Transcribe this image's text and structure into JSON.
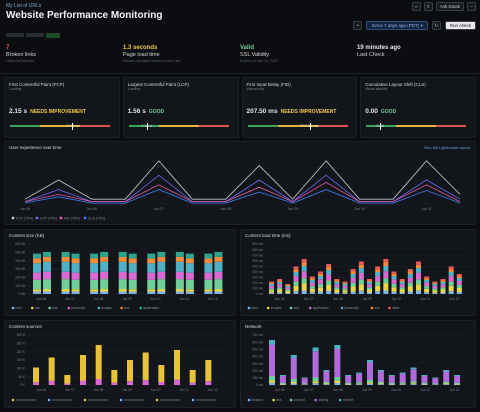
{
  "header": {
    "breadcrumb": "My List of URLs",
    "title": "Website Performance Monitoring",
    "ask_label": "Ask Dinak",
    "time_range": "Since 7 days ago (PDT)",
    "run_check": "Run check"
  },
  "summary": [
    {
      "value": "7",
      "label": "Broken links",
      "sub": "Links that fail auth",
      "color": "#e05a4e"
    },
    {
      "value": "1.3 seconds",
      "label": "Page load time",
      "sub": "Median calculated based on last visit",
      "color": "#f2c94c"
    },
    {
      "value": "Valid",
      "label": "SSL Validity",
      "sub": "Expires on Jan 12, 2024",
      "color": "#6fcf97"
    },
    {
      "value": "19 minutes ago",
      "label": "Last Check",
      "sub": "",
      "color": "#e6e8ea"
    }
  ],
  "metrics": [
    {
      "title": "First Contentful Paint (FCP)",
      "sub": "Loading",
      "value": "2.15 s",
      "status": "NEEDS IMPROVEMENT",
      "status_color": "#f2c94c",
      "marker_label": "2.15 s",
      "marker_pos": 0.62
    },
    {
      "title": "Largest Contentful Paint (LCP)",
      "sub": "Loading",
      "value": "1.56 s",
      "status": "GOOD",
      "status_color": "#6fcf97",
      "marker_label": "1.56 s",
      "marker_pos": 0.18
    },
    {
      "title": "First Input Delay (FID)",
      "sub": "Interactivity",
      "value": "207.50 ms",
      "status": "NEEDS IMPROVEMENT",
      "status_color": "#f2c94c",
      "marker_label": "207.50 ms",
      "marker_pos": 0.62
    },
    {
      "title": "Cumulative Layout Shift (CLS)",
      "sub": "Visual stability",
      "value": "0.00",
      "status": "GOOD",
      "status_color": "#6fcf97",
      "marker_label": "0.00",
      "marker_pos": 0.14
    }
  ],
  "panels": {
    "ux_title": "User experience over time",
    "ux_link": "Run full Lighthouse report",
    "content_size_title": "Content size (KB)",
    "load_time_title": "Content load time (ms)",
    "sources_title": "Content sources",
    "network_title": "Network"
  },
  "colors": {
    "good": "#3ba55d",
    "warn": "#e3b23c",
    "bad": "#d9534f"
  },
  "chart_data": [
    {
      "type": "line",
      "title": "User experience over time",
      "x": [
        "Jun 06",
        "Jun 06",
        "Jun 06",
        "Jun 07",
        "Jun 07",
        "Jun 08",
        "Jun 08",
        "Jun 09",
        "Jun 09",
        "Jun 10",
        "Jun 10",
        "Jun 11",
        "Jun 11",
        "Jun 12"
      ],
      "series": [
        {
          "name": "FCP (75%)",
          "color": "#c7cbd1",
          "values": [
            0.1,
            0.5,
            0.1,
            0.1,
            0.9,
            0.1,
            0.1,
            0.8,
            0.1,
            0.9,
            0.1,
            0.1,
            0.9,
            0.2
          ]
        },
        {
          "name": "LCP (75%)",
          "color": "#6d6df0",
          "values": [
            0.05,
            0.3,
            0.05,
            0.05,
            0.6,
            0.05,
            0.05,
            0.5,
            0.05,
            0.6,
            0.05,
            0.05,
            0.5,
            0.1
          ]
        },
        {
          "name": "FID (75%)",
          "color": "#e85cb0",
          "values": [
            0.05,
            0.2,
            0.05,
            0.05,
            0.4,
            0.05,
            0.05,
            0.35,
            0.05,
            0.45,
            0.05,
            0.05,
            0.4,
            0.05
          ]
        },
        {
          "name": "CLS (75%)",
          "color": "#3b7cf0",
          "values": [
            0.02,
            0.15,
            0.02,
            0.02,
            0.3,
            0.02,
            0.02,
            0.25,
            0.02,
            0.3,
            0.02,
            0.02,
            0.28,
            0.02
          ]
        }
      ]
    },
    {
      "type": "bar",
      "title": "Content size (KB)",
      "yticks": [
        "600 kB",
        "500 kB",
        "400 kB",
        "300 kB",
        "200 kB",
        "100 kB",
        "0 kB"
      ],
      "categories": [
        "Jun 06",
        "Jun 07",
        "Jun 08",
        "Jun 09",
        "Jun 10",
        "Jun 11",
        "Jun 12"
      ],
      "series_names": [
        "html",
        "css",
        "font",
        "javascript",
        "images",
        "text",
        "application"
      ],
      "series_colors": [
        "#7fb3e8",
        "#e8d74a",
        "#6fcf97",
        "#d96ad1",
        "#4fb0c6",
        "#f28c3b",
        "#2fa58f"
      ],
      "stack": [
        0.05,
        0.05,
        0.2,
        0.15,
        0.2,
        0.1,
        0.1
      ]
    },
    {
      "type": "bar",
      "title": "Content load time (ms)",
      "yticks": [
        "900 ms",
        "800 ms",
        "700 ms",
        "600 ms",
        "500 ms",
        "400 ms",
        "300 ms",
        "200 ms",
        "100 ms",
        "0 ms"
      ],
      "categories": [
        "Jun 06",
        "Jun 07",
        "Jun 08",
        "Jun 09",
        "Jun 10",
        "Jun 11",
        "Jun 12"
      ],
      "series_names": [
        "html",
        "images",
        "font",
        "application",
        "javascript",
        "css",
        "other"
      ],
      "series_colors": [
        "#7fb3e8",
        "#e8d74a",
        "#6fcf97",
        "#d96ad1",
        "#4fb0c6",
        "#f28c3b",
        "#e85c5c"
      ]
    },
    {
      "type": "bar",
      "title": "Content sources",
      "yticks": [
        "300 K",
        "250 K",
        "200 K",
        "150 K",
        "100 K",
        "50 K",
        "0 K"
      ],
      "categories": [
        "Jun 06",
        "Jun 07",
        "Jun 08",
        "Jun 09",
        "Jun 10",
        "Jun 11",
        "Jun 12"
      ]
    },
    {
      "type": "bar",
      "title": "Network",
      "yticks": [
        "700 ms",
        "600 ms",
        "500 ms",
        "400 ms",
        "300 ms",
        "200 ms",
        "100 ms",
        "0 ms"
      ],
      "categories": [
        "Jun 06",
        "Jun 07",
        "Jun 08",
        "Jun 09",
        "Jun 10",
        "Jun 11",
        "Jun 12"
      ],
      "series_names": [
        "blocked",
        "dns",
        "connect",
        "waiting",
        "receive"
      ],
      "series_colors": [
        "#7fb3e8",
        "#e8d74a",
        "#6fcf97",
        "#b06ad9",
        "#4fb0c6"
      ]
    }
  ]
}
